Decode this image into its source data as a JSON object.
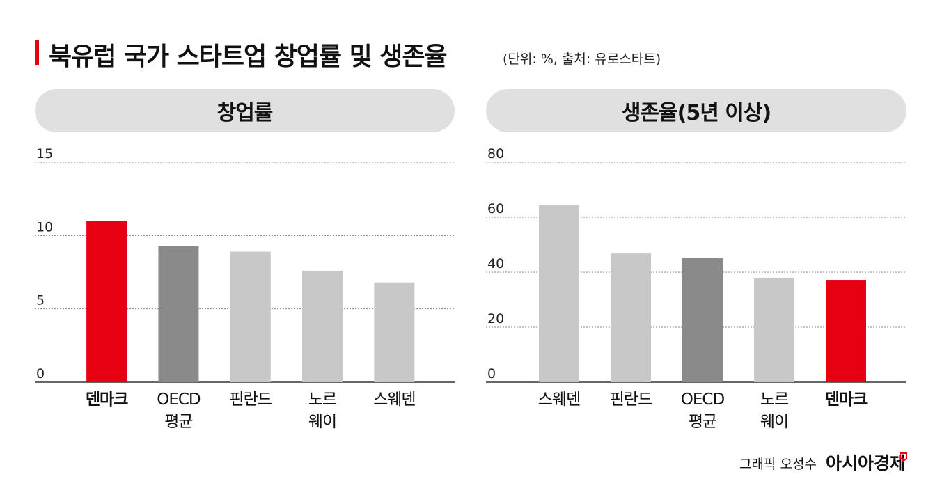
{
  "title": "북유럽 국가 스타트업 창업률 및 생존율",
  "subtitle": "(단위: %, 출처: 유로스타트)",
  "credit": "그래픽 오성수",
  "brand": "아시아경제",
  "chart_data": [
    {
      "type": "bar",
      "title": "창업률",
      "categories": [
        "덴마크",
        "OECD\n평균",
        "핀란드",
        "노르\n웨이",
        "스웨덴"
      ],
      "values": [
        11.0,
        9.3,
        8.9,
        7.6,
        6.8
      ],
      "colors": [
        "#e60012",
        "#8a8a8a",
        "#c8c8c8",
        "#c8c8c8",
        "#c8c8c8"
      ],
      "highlight_index": 0,
      "ylim": [
        0,
        15
      ],
      "yticks": [
        0,
        5,
        10,
        15
      ],
      "grid": true
    },
    {
      "type": "bar",
      "title": "생존율(5년 이상)",
      "categories": [
        "스웨덴",
        "핀란드",
        "OECD\n평균",
        "노르\n웨이",
        "덴마크"
      ],
      "values": [
        64.3,
        46.8,
        45.1,
        38.0,
        37.2
      ],
      "colors": [
        "#c8c8c8",
        "#c8c8c8",
        "#8a8a8a",
        "#c8c8c8",
        "#e60012"
      ],
      "highlight_index": 4,
      "ylim": [
        0,
        80
      ],
      "yticks": [
        0,
        20,
        40,
        60,
        80
      ],
      "grid": true
    }
  ]
}
